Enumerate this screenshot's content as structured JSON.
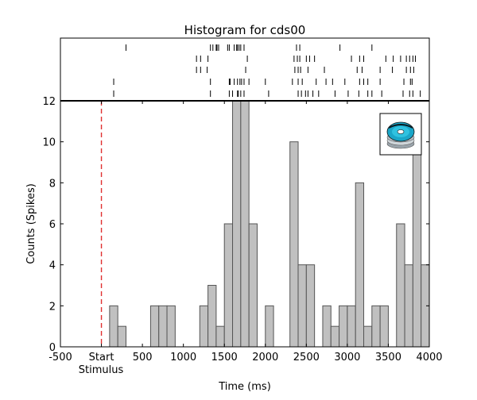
{
  "chart_data": {
    "type": "bar",
    "title": "Histogram for cds00",
    "xlabel": "Time (ms)",
    "ylabel": "Counts (Spikes)",
    "xlim": [
      -500,
      4000
    ],
    "ylim": [
      0,
      12
    ],
    "x_ticks": [
      -500,
      0,
      500,
      1000,
      1500,
      2000,
      2500,
      3000,
      3500,
      4000
    ],
    "x_tick_labels": [
      "-500",
      "Start",
      "500",
      "1000",
      "1500",
      "2000",
      "2500",
      "3000",
      "3500",
      "4000"
    ],
    "x_tick_sublabel": "Stimulus",
    "y_ticks": [
      0,
      2,
      4,
      6,
      8,
      10,
      12
    ],
    "stimulus_time": 0,
    "bin_width": 100,
    "bins_start": [
      -500,
      -400,
      -300,
      -200,
      -100,
      0,
      100,
      200,
      300,
      400,
      500,
      600,
      700,
      800,
      900,
      1000,
      1100,
      1200,
      1300,
      1400,
      1500,
      1600,
      1700,
      1800,
      1900,
      2000,
      2100,
      2200,
      2300,
      2400,
      2500,
      2600,
      2700,
      2800,
      2900,
      3000,
      3100,
      3200,
      3300,
      3400,
      3500,
      3600,
      3700,
      3800,
      3900
    ],
    "counts": [
      0,
      0,
      0,
      0,
      0,
      0,
      2,
      1,
      0,
      0,
      0,
      2,
      2,
      2,
      0,
      0,
      0,
      2,
      3,
      1,
      6,
      12,
      12,
      6,
      0,
      2,
      0,
      0,
      10,
      4,
      4,
      0,
      2,
      1,
      2,
      2,
      8,
      1,
      2,
      2,
      0,
      6,
      4,
      10,
      4
    ],
    "raster_trials": [
      [
        300,
        1330,
        1360,
        1400,
        1410,
        1430,
        1540,
        1560,
        1620,
        1650,
        1660,
        1680,
        1700,
        1740,
        2380,
        2420,
        2910,
        3300
      ],
      [
        1160,
        1210,
        1300,
        1780,
        2350,
        2390,
        2420,
        2500,
        2540,
        2600,
        3050,
        3150,
        3200,
        3470,
        3560,
        3650,
        3720,
        3760,
        3800,
        3830
      ],
      [
        1160,
        1210,
        1290,
        1760,
        2360,
        2400,
        2430,
        2520,
        2720,
        3120,
        3180,
        3400,
        3550,
        3720,
        3770,
        3810
      ],
      [
        150,
        1330,
        1560,
        1570,
        1620,
        1660,
        1690,
        1710,
        1740,
        1800,
        2000,
        2330,
        2400,
        2450,
        2620,
        2740,
        2820,
        2970,
        3150,
        3200,
        3250,
        3400,
        3690,
        3770,
        3790
      ],
      [
        150,
        1330,
        1560,
        1600,
        1660,
        1670,
        1700,
        1740,
        2040,
        2400,
        2440,
        2490,
        2520,
        2580,
        2650,
        2850,
        3010,
        3140,
        3250,
        3300,
        3420,
        3680,
        3760,
        3800,
        3890
      ]
    ],
    "bar_fill": "#c0c0c0",
    "bar_edge": "#555555",
    "stimulus_line_color": "#e03030",
    "logo_icon": "cd-stack-icon"
  }
}
